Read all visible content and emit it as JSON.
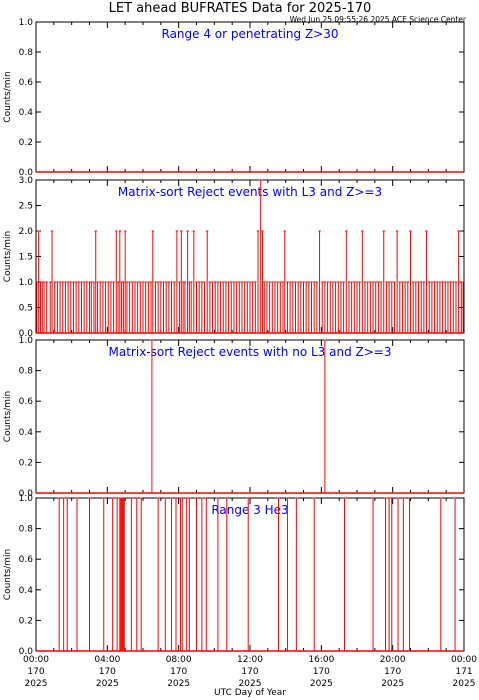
{
  "header": {
    "title": "LET ahead BUFRATES Data for 2025-170",
    "timestamp": "Wed Jun 25 09:55:26 2025 ACE Science Center"
  },
  "x_axis": {
    "label": "UTC Day of Year",
    "ticks": [
      {
        "time": "00:00",
        "doy": "170",
        "year": "2025",
        "hour": 0
      },
      {
        "time": "04:00",
        "doy": "170",
        "year": "2025",
        "hour": 4
      },
      {
        "time": "08:00",
        "doy": "170",
        "year": "2025",
        "hour": 8
      },
      {
        "time": "12:00",
        "doy": "170",
        "year": "2025",
        "hour": 12
      },
      {
        "time": "16:00",
        "doy": "170",
        "year": "2025",
        "hour": 16
      },
      {
        "time": "20:00",
        "doy": "170",
        "year": "2025",
        "hour": 20
      },
      {
        "time": "00:00",
        "doy": "171",
        "year": "2025",
        "hour": 24
      }
    ]
  },
  "colors": {
    "data": "#ff0000",
    "title": "#0000ff",
    "axis": "#000000"
  },
  "chart_data": [
    {
      "type": "line",
      "title": "Range 4 or  penetrating Z>30",
      "ylabel": "Counts/min",
      "ylim": [
        0,
        1
      ],
      "yticks": [
        "0.0",
        "0.2",
        "0.4",
        "0.6",
        "0.8",
        "1.0"
      ],
      "x_unit": "UTC hour of day 2025-170",
      "xlim": [
        0,
        24
      ],
      "baseline": 0,
      "series": [
        {
          "values": []
        }
      ]
    },
    {
      "type": "line",
      "title": "Matrix-sort Reject events with L3 and Z>=3",
      "ylabel": "Counts/min",
      "ylim": [
        0,
        3
      ],
      "yticks": [
        "0.0",
        "0.5",
        "1.0",
        "1.5",
        "2.0",
        "2.5",
        "3.0"
      ],
      "x_unit": "UTC hour of day 2025-170",
      "xlim": [
        0,
        24
      ],
      "baseline": 0,
      "series": [
        {
          "values": [
            [
              0.05,
              1
            ],
            [
              0.15,
              2
            ],
            [
              0.25,
              1
            ],
            [
              0.35,
              1
            ],
            [
              0.45,
              1
            ],
            [
              0.6,
              1
            ],
            [
              0.8,
              1
            ],
            [
              0.9,
              2
            ],
            [
              1.05,
              1
            ],
            [
              1.2,
              1
            ],
            [
              1.35,
              1
            ],
            [
              1.5,
              1
            ],
            [
              1.65,
              1
            ],
            [
              1.8,
              1
            ],
            [
              1.95,
              1
            ],
            [
              2.1,
              1
            ],
            [
              2.25,
              1
            ],
            [
              2.4,
              1
            ],
            [
              2.55,
              1
            ],
            [
              2.7,
              1
            ],
            [
              2.85,
              1
            ],
            [
              3.0,
              1
            ],
            [
              3.1,
              1
            ],
            [
              3.25,
              1
            ],
            [
              3.35,
              2
            ],
            [
              3.45,
              1
            ],
            [
              3.6,
              1
            ],
            [
              3.75,
              1
            ],
            [
              3.9,
              1
            ],
            [
              4.05,
              1
            ],
            [
              4.2,
              1
            ],
            [
              4.35,
              1
            ],
            [
              4.5,
              2
            ],
            [
              4.6,
              1
            ],
            [
              4.7,
              2
            ],
            [
              4.8,
              1
            ],
            [
              4.9,
              1
            ],
            [
              5.0,
              2
            ],
            [
              5.1,
              1
            ],
            [
              5.25,
              1
            ],
            [
              5.4,
              1
            ],
            [
              5.55,
              1
            ],
            [
              5.7,
              1
            ],
            [
              5.85,
              1
            ],
            [
              6.0,
              1
            ],
            [
              6.15,
              1
            ],
            [
              6.3,
              1
            ],
            [
              6.45,
              1
            ],
            [
              6.55,
              2
            ],
            [
              6.7,
              1
            ],
            [
              6.85,
              1
            ],
            [
              7.0,
              1
            ],
            [
              7.15,
              1
            ],
            [
              7.3,
              1
            ],
            [
              7.45,
              1
            ],
            [
              7.6,
              1
            ],
            [
              7.75,
              1
            ],
            [
              7.9,
              2
            ],
            [
              8.05,
              1
            ],
            [
              8.15,
              2
            ],
            [
              8.25,
              1
            ],
            [
              8.35,
              1
            ],
            [
              8.5,
              2
            ],
            [
              8.6,
              1
            ],
            [
              8.7,
              1
            ],
            [
              8.85,
              2
            ],
            [
              9.0,
              1
            ],
            [
              9.15,
              1
            ],
            [
              9.3,
              1
            ],
            [
              9.45,
              1
            ],
            [
              9.6,
              2
            ],
            [
              9.75,
              1
            ],
            [
              9.9,
              1
            ],
            [
              10.05,
              1
            ],
            [
              10.2,
              1
            ],
            [
              10.35,
              1
            ],
            [
              10.5,
              1
            ],
            [
              10.65,
              1
            ],
            [
              10.8,
              1
            ],
            [
              10.95,
              1
            ],
            [
              11.1,
              1
            ],
            [
              11.25,
              1
            ],
            [
              11.4,
              1
            ],
            [
              11.55,
              1
            ],
            [
              11.7,
              1
            ],
            [
              11.85,
              1
            ],
            [
              12.0,
              1
            ],
            [
              12.15,
              1
            ],
            [
              12.3,
              1
            ],
            [
              12.45,
              2
            ],
            [
              12.6,
              3
            ],
            [
              12.7,
              2
            ],
            [
              12.8,
              1
            ],
            [
              12.95,
              1
            ],
            [
              13.1,
              1
            ],
            [
              13.25,
              1
            ],
            [
              13.4,
              1
            ],
            [
              13.55,
              1
            ],
            [
              13.7,
              1
            ],
            [
              13.85,
              1
            ],
            [
              13.95,
              2
            ],
            [
              14.1,
              1
            ],
            [
              14.25,
              1
            ],
            [
              14.4,
              1
            ],
            [
              14.55,
              1
            ],
            [
              14.7,
              1
            ],
            [
              14.85,
              1
            ],
            [
              15.0,
              1
            ],
            [
              15.15,
              1
            ],
            [
              15.3,
              1
            ],
            [
              15.45,
              1
            ],
            [
              15.6,
              1
            ],
            [
              15.75,
              1
            ],
            [
              15.9,
              2
            ],
            [
              16.05,
              1
            ],
            [
              16.2,
              1
            ],
            [
              16.35,
              1
            ],
            [
              16.5,
              1
            ],
            [
              16.65,
              1
            ],
            [
              16.8,
              1
            ],
            [
              16.95,
              1
            ],
            [
              17.1,
              1
            ],
            [
              17.25,
              1
            ],
            [
              17.4,
              2
            ],
            [
              17.55,
              1
            ],
            [
              17.7,
              1
            ],
            [
              17.85,
              1
            ],
            [
              18.0,
              1
            ],
            [
              18.15,
              1
            ],
            [
              18.3,
              2
            ],
            [
              18.45,
              1
            ],
            [
              18.6,
              1
            ],
            [
              18.75,
              1
            ],
            [
              18.9,
              1
            ],
            [
              19.05,
              1
            ],
            [
              19.2,
              1
            ],
            [
              19.35,
              1
            ],
            [
              19.5,
              2
            ],
            [
              19.65,
              1
            ],
            [
              19.8,
              1
            ],
            [
              19.95,
              1
            ],
            [
              20.1,
              1
            ],
            [
              20.25,
              2
            ],
            [
              20.4,
              1
            ],
            [
              20.55,
              1
            ],
            [
              20.7,
              1
            ],
            [
              20.85,
              1
            ],
            [
              21.0,
              2
            ],
            [
              21.15,
              1
            ],
            [
              21.3,
              1
            ],
            [
              21.45,
              1
            ],
            [
              21.6,
              1
            ],
            [
              21.75,
              1
            ],
            [
              21.9,
              2
            ],
            [
              22.05,
              1
            ],
            [
              22.2,
              1
            ],
            [
              22.35,
              1
            ],
            [
              22.5,
              1
            ],
            [
              22.65,
              1
            ],
            [
              22.8,
              1
            ],
            [
              22.95,
              1
            ],
            [
              23.1,
              1
            ],
            [
              23.25,
              1
            ],
            [
              23.4,
              1
            ],
            [
              23.55,
              1
            ],
            [
              23.7,
              2
            ],
            [
              23.85,
              1
            ],
            [
              23.95,
              1
            ]
          ]
        }
      ]
    },
    {
      "type": "line",
      "title": "Matrix-sort Reject events with no L3 and Z>=3",
      "ylabel": "Counts/min",
      "ylim": [
        0,
        1
      ],
      "yticks": [
        "0.0",
        "0.2",
        "0.4",
        "0.6",
        "0.8",
        "1.0"
      ],
      "x_unit": "UTC hour of day 2025-170",
      "xlim": [
        0,
        24
      ],
      "baseline": 0,
      "series": [
        {
          "values": [
            [
              6.5,
              1
            ],
            [
              16.2,
              1
            ]
          ]
        }
      ]
    },
    {
      "type": "line",
      "title": "Range 3 He3",
      "ylabel": "Counts/min",
      "ylim": [
        0,
        1
      ],
      "yticks": [
        "0.0",
        "0.2",
        "0.4",
        "0.6",
        "0.8",
        "1.0"
      ],
      "x_unit": "UTC hour of day 2025-170",
      "xlim": [
        0,
        24
      ],
      "baseline": 0,
      "series": [
        {
          "values": [
            [
              1.3,
              1
            ],
            [
              1.55,
              1
            ],
            [
              1.75,
              1
            ],
            [
              2.3,
              1
            ],
            [
              3.0,
              1
            ],
            [
              3.8,
              1
            ],
            [
              4.3,
              1
            ],
            [
              4.55,
              1
            ],
            [
              4.7,
              1
            ],
            [
              4.75,
              1
            ],
            [
              4.8,
              1
            ],
            [
              4.85,
              1
            ],
            [
              4.9,
              1
            ],
            [
              4.95,
              1
            ],
            [
              5.35,
              1
            ],
            [
              5.65,
              1
            ],
            [
              5.9,
              1
            ],
            [
              6.85,
              1
            ],
            [
              7.25,
              1
            ],
            [
              7.6,
              1
            ],
            [
              7.85,
              1
            ],
            [
              8.1,
              1
            ],
            [
              8.2,
              1
            ],
            [
              8.45,
              1
            ],
            [
              8.6,
              1
            ],
            [
              9.0,
              1
            ],
            [
              9.3,
              1
            ],
            [
              9.55,
              1
            ],
            [
              10.2,
              1
            ],
            [
              10.7,
              1
            ],
            [
              11.9,
              1
            ],
            [
              13.6,
              1
            ],
            [
              14.1,
              1
            ],
            [
              14.6,
              1
            ],
            [
              15.6,
              1
            ],
            [
              17.3,
              1
            ],
            [
              18.9,
              1
            ],
            [
              19.6,
              1
            ],
            [
              19.8,
              1
            ],
            [
              19.95,
              1
            ],
            [
              20.3,
              1
            ],
            [
              20.6,
              1
            ],
            [
              20.95,
              1
            ],
            [
              22.7,
              1
            ],
            [
              23.5,
              1
            ]
          ]
        }
      ]
    }
  ]
}
